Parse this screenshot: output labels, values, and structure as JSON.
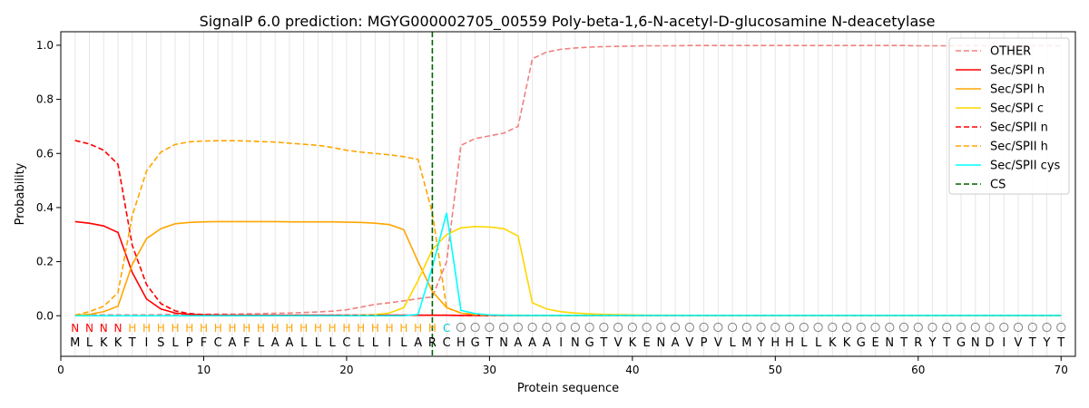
{
  "chart_data": {
    "type": "line",
    "title": "SignalP 6.0 prediction: MGYG000002705_00559 Poly-beta-1,6-N-acetyl-D-glucosamine N-deacetylase",
    "xlabel": "Protein sequence",
    "ylabel": "Probability",
    "xlim": [
      0,
      71
    ],
    "ylim": [
      -0.15,
      1.05
    ],
    "xticks": [
      0,
      10,
      20,
      30,
      40,
      50,
      60,
      70
    ],
    "xtick_labels": [
      "0",
      "10",
      "20",
      "30",
      "40",
      "50",
      "60",
      "70"
    ],
    "yticks": [
      0.0,
      0.2,
      0.4,
      0.6,
      0.8,
      1.0
    ],
    "ytick_labels": [
      "0.0",
      "0.2",
      "0.4",
      "0.6",
      "0.8",
      "1.0"
    ],
    "grid": "vertical lines at each residue",
    "legend_position": "top-right",
    "x": [
      1,
      2,
      3,
      4,
      5,
      6,
      7,
      8,
      9,
      10,
      11,
      12,
      13,
      14,
      15,
      16,
      17,
      18,
      19,
      20,
      21,
      22,
      23,
      24,
      25,
      26,
      27,
      28,
      29,
      30,
      31,
      32,
      33,
      34,
      35,
      36,
      37,
      38,
      39,
      40,
      41,
      42,
      43,
      44,
      45,
      46,
      47,
      48,
      49,
      50,
      51,
      52,
      53,
      54,
      55,
      56,
      57,
      58,
      59,
      60,
      61,
      62,
      63,
      64,
      65,
      66,
      67,
      68,
      69,
      70
    ],
    "sequence": [
      "M",
      "L",
      "K",
      "K",
      "T",
      "I",
      "S",
      "L",
      "P",
      "F",
      "C",
      "A",
      "F",
      "L",
      "A",
      "A",
      "L",
      "L",
      "L",
      "C",
      "L",
      "L",
      "I",
      "L",
      "A",
      "R",
      "C",
      "H",
      "G",
      "T",
      "N",
      "A",
      "A",
      "A",
      "I",
      "N",
      "G",
      "T",
      "V",
      "K",
      "E",
      "N",
      "A",
      "V",
      "P",
      "V",
      "L",
      "M",
      "Y",
      "H",
      "H",
      "L",
      "L",
      "K",
      "K",
      "G",
      "E",
      "N",
      "T",
      "R",
      "Y",
      "T",
      "G",
      "N",
      "D",
      "I",
      "V",
      "T",
      "Y",
      "T"
    ],
    "region_labels": [
      "N",
      "N",
      "N",
      "N",
      "H",
      "H",
      "H",
      "H",
      "H",
      "H",
      "H",
      "H",
      "H",
      "H",
      "H",
      "H",
      "H",
      "H",
      "H",
      "H",
      "H",
      "H",
      "H",
      "H",
      "H",
      "H",
      "C",
      "O",
      "O",
      "O",
      "O",
      "O",
      "O",
      "O",
      "O",
      "O",
      "O",
      "O",
      "O",
      "O",
      "O",
      "O",
      "O",
      "O",
      "O",
      "O",
      "O",
      "O",
      "O",
      "O",
      "O",
      "O",
      "O",
      "O",
      "O",
      "O",
      "O",
      "O",
      "O",
      "O",
      "O",
      "O",
      "O",
      "O",
      "O",
      "O",
      "O",
      "O",
      "O",
      "O"
    ],
    "region_colors": {
      "N": "#ff0000",
      "H": "#ffa500",
      "C": "#00cccc",
      "O": "#808080"
    },
    "cleavage_site": 26,
    "series": [
      {
        "name": "OTHER",
        "color": "#f08080",
        "dash": true,
        "values": [
          0.003,
          0.003,
          0.003,
          0.003,
          0.003,
          0.003,
          0.004,
          0.005,
          0.005,
          0.005,
          0.006,
          0.006,
          0.007,
          0.008,
          0.009,
          0.01,
          0.012,
          0.014,
          0.017,
          0.022,
          0.032,
          0.042,
          0.048,
          0.055,
          0.063,
          0.07,
          0.2,
          0.63,
          0.655,
          0.665,
          0.675,
          0.7,
          0.95,
          0.975,
          0.985,
          0.99,
          0.993,
          0.995,
          0.996,
          0.997,
          0.998,
          0.998,
          0.998,
          0.999,
          0.999,
          0.999,
          0.999,
          0.999,
          0.999,
          0.999,
          0.999,
          0.999,
          0.999,
          0.999,
          0.999,
          0.999,
          0.999,
          0.999,
          0.999,
          0.998,
          0.998,
          0.998,
          0.998,
          0.998,
          0.998,
          0.998,
          0.998,
          0.998,
          0.998,
          0.998
        ]
      },
      {
        "name": "Sec/SPI n",
        "color": "#ff0000",
        "dash": false,
        "values": [
          0.348,
          0.342,
          0.332,
          0.308,
          0.16,
          0.062,
          0.025,
          0.01,
          0.005,
          0.003,
          0.002,
          0.002,
          0.002,
          0.002,
          0.002,
          0.002,
          0.002,
          0.002,
          0.002,
          0.002,
          0.002,
          0.002,
          0.002,
          0.002,
          0.002,
          0.002,
          0.002,
          0.001,
          0.001,
          0.001,
          0.001,
          0.001,
          0.001,
          0.001,
          0.001,
          0.001,
          0.001,
          0.001,
          0.001,
          0.001,
          0.001,
          0.001,
          0.001,
          0.001,
          0.001,
          0.001,
          0.001,
          0.001,
          0.001,
          0.001,
          0.001,
          0.001,
          0.001,
          0.001,
          0.001,
          0.001,
          0.001,
          0.001,
          0.001,
          0.001,
          0.001,
          0.001,
          0.001,
          0.001,
          0.001,
          0.001,
          0.001,
          0.001,
          0.001,
          0.001
        ]
      },
      {
        "name": "Sec/SPI h",
        "color": "#ffa500",
        "dash": false,
        "values": [
          0.001,
          0.005,
          0.015,
          0.035,
          0.19,
          0.285,
          0.322,
          0.34,
          0.345,
          0.347,
          0.348,
          0.348,
          0.348,
          0.348,
          0.348,
          0.347,
          0.347,
          0.347,
          0.347,
          0.346,
          0.345,
          0.342,
          0.337,
          0.318,
          0.2,
          0.09,
          0.03,
          0.01,
          0.005,
          0.003,
          0.002,
          0.002,
          0.001,
          0.001,
          0.001,
          0.001,
          0.001,
          0.001,
          0.001,
          0.001,
          0.001,
          0.001,
          0.001,
          0.001,
          0.001,
          0.001,
          0.001,
          0.001,
          0.001,
          0.001,
          0.001,
          0.001,
          0.001,
          0.001,
          0.001,
          0.001,
          0.001,
          0.001,
          0.001,
          0.001,
          0.001,
          0.001,
          0.001,
          0.001,
          0.001,
          0.001,
          0.001,
          0.001,
          0.001,
          0.001
        ]
      },
      {
        "name": "Sec/SPI c",
        "color": "#ffd700",
        "dash": false,
        "values": [
          0.0,
          0.0,
          0.0,
          0.0,
          0.0,
          0.0,
          0.0,
          0.0,
          0.0,
          0.0,
          0.0,
          0.0,
          0.0,
          0.0,
          0.0,
          0.0,
          0.0,
          0.0,
          0.0,
          0.001,
          0.002,
          0.004,
          0.01,
          0.03,
          0.13,
          0.245,
          0.3,
          0.325,
          0.33,
          0.328,
          0.322,
          0.295,
          0.048,
          0.025,
          0.015,
          0.01,
          0.007,
          0.005,
          0.004,
          0.003,
          0.002,
          0.002,
          0.002,
          0.001,
          0.001,
          0.001,
          0.001,
          0.001,
          0.001,
          0.001,
          0.001,
          0.001,
          0.001,
          0.001,
          0.001,
          0.001,
          0.001,
          0.001,
          0.001,
          0.001,
          0.001,
          0.001,
          0.001,
          0.001,
          0.001,
          0.001,
          0.001,
          0.001,
          0.001,
          0.001
        ]
      },
      {
        "name": "Sec/SPII n",
        "color": "#ff0000",
        "dash": true,
        "values": [
          0.648,
          0.635,
          0.612,
          0.56,
          0.26,
          0.115,
          0.045,
          0.018,
          0.008,
          0.004,
          0.003,
          0.002,
          0.002,
          0.002,
          0.002,
          0.002,
          0.002,
          0.002,
          0.002,
          0.002,
          0.002,
          0.002,
          0.002,
          0.002,
          0.002,
          0.002,
          0.002,
          0.001,
          0.001,
          0.001,
          0.001,
          0.001,
          0.001,
          0.001,
          0.001,
          0.001,
          0.001,
          0.001,
          0.001,
          0.001,
          0.001,
          0.001,
          0.001,
          0.001,
          0.001,
          0.001,
          0.001,
          0.001,
          0.001,
          0.001,
          0.001,
          0.001,
          0.001,
          0.001,
          0.001,
          0.001,
          0.001,
          0.001,
          0.001,
          0.001,
          0.001,
          0.001,
          0.001,
          0.001,
          0.001,
          0.001,
          0.001,
          0.001,
          0.001,
          0.001
        ]
      },
      {
        "name": "Sec/SPII h",
        "color": "#ffa500",
        "dash": true,
        "values": [
          0.002,
          0.015,
          0.035,
          0.085,
          0.37,
          0.535,
          0.605,
          0.633,
          0.643,
          0.646,
          0.647,
          0.647,
          0.646,
          0.644,
          0.642,
          0.638,
          0.634,
          0.63,
          0.622,
          0.612,
          0.605,
          0.6,
          0.595,
          0.588,
          0.578,
          0.38,
          0.03,
          0.01,
          0.004,
          0.002,
          0.001,
          0.001,
          0.001,
          0.001,
          0.001,
          0.001,
          0.001,
          0.001,
          0.001,
          0.001,
          0.001,
          0.001,
          0.001,
          0.001,
          0.001,
          0.001,
          0.001,
          0.001,
          0.001,
          0.001,
          0.001,
          0.001,
          0.001,
          0.001,
          0.001,
          0.001,
          0.001,
          0.001,
          0.001,
          0.001,
          0.001,
          0.001,
          0.001,
          0.001,
          0.001,
          0.001,
          0.001,
          0.001,
          0.001,
          0.001
        ]
      },
      {
        "name": "Sec/SPII cys",
        "color": "#00ffff",
        "dash": false,
        "values": [
          0.0,
          0.0,
          0.0,
          0.0,
          0.0,
          0.0,
          0.0,
          0.0,
          0.0,
          0.0,
          0.0,
          0.0,
          0.0,
          0.0,
          0.0,
          0.0,
          0.0,
          0.0,
          0.0,
          0.0,
          0.0,
          0.0,
          0.0,
          0.0,
          0.005,
          0.18,
          0.38,
          0.02,
          0.008,
          0.003,
          0.002,
          0.001,
          0.001,
          0.001,
          0.001,
          0.001,
          0.001,
          0.001,
          0.001,
          0.001,
          0.001,
          0.001,
          0.001,
          0.001,
          0.001,
          0.001,
          0.001,
          0.001,
          0.001,
          0.001,
          0.001,
          0.001,
          0.001,
          0.001,
          0.001,
          0.001,
          0.001,
          0.001,
          0.001,
          0.001,
          0.001,
          0.001,
          0.001,
          0.001,
          0.001,
          0.001,
          0.001,
          0.001,
          0.001,
          0.001
        ]
      }
    ],
    "cs_legend": {
      "name": "CS",
      "color": "#006400",
      "dash": true
    }
  }
}
